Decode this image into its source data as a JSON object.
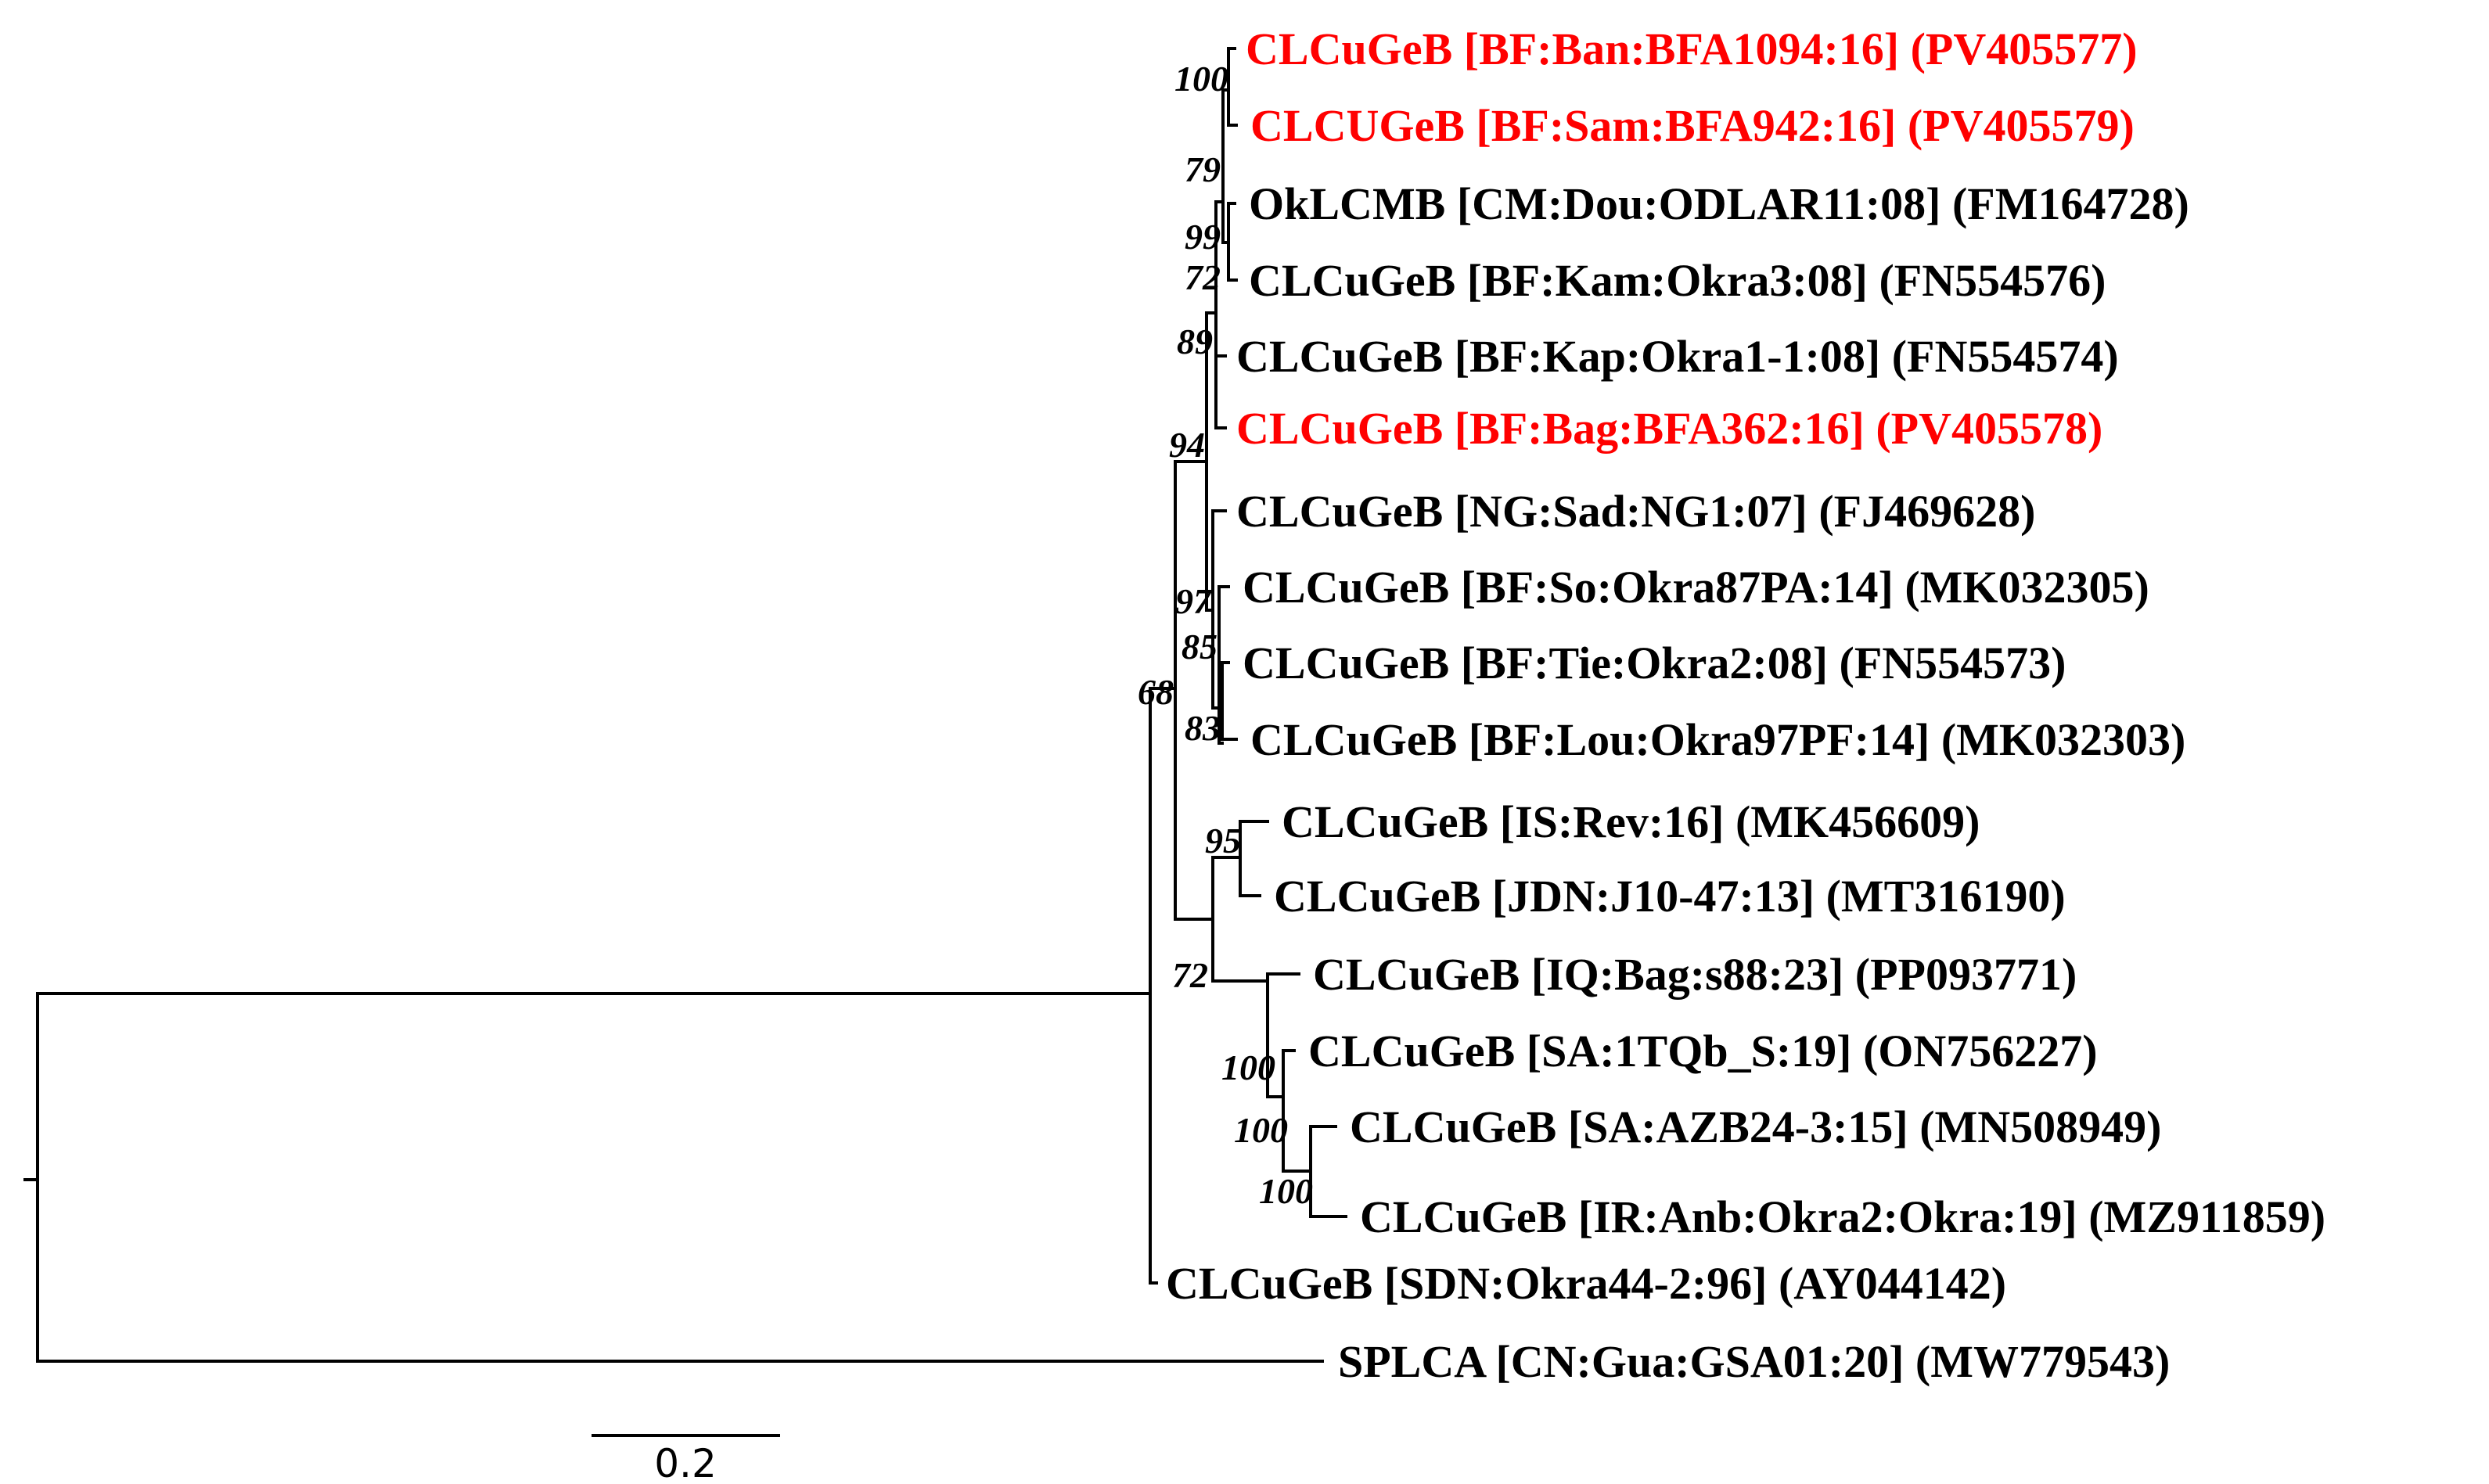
{
  "colors": {
    "highlight": "#ff0000",
    "default": "#000000"
  },
  "scale_bar": {
    "value": 0.2,
    "label": "0.2"
  },
  "leaves": [
    {
      "id": "BFA1094",
      "label": "CLCuGeB [BF:Ban:BFA1094:16] (PV405577)",
      "highlight": true
    },
    {
      "id": "BFA942",
      "label": "CLCUGeB [BF:Sam:BFA942:16] (PV405579)",
      "highlight": true
    },
    {
      "id": "ODLAR11",
      "label": "OkLCMB [CM:Dou:ODLAR11:08] (FM164728)",
      "highlight": false
    },
    {
      "id": "Okra3",
      "label": "CLCuGeB [BF:Kam:Okra3:08] (FN554576)",
      "highlight": false
    },
    {
      "id": "Okra1-1",
      "label": "CLCuGeB [BF:Kap:Okra1-1:08] (FN554574)",
      "highlight": false
    },
    {
      "id": "BFA362",
      "label": "CLCuGeB [BF:Bag:BFA362:16] (PV405578)",
      "highlight": true
    },
    {
      "id": "NG1",
      "label": "CLCuGeB [NG:Sad:NG1:07] (FJ469628)",
      "highlight": false
    },
    {
      "id": "Okra87PA",
      "label": "CLCuGeB [BF:So:Okra87PA:14] (MK032305)",
      "highlight": false
    },
    {
      "id": "Okra2Tie",
      "label": "CLCuGeB [BF:Tie:Okra2:08] (FN554573)",
      "highlight": false
    },
    {
      "id": "Okra97PF",
      "label": "CLCuGeB [BF:Lou:Okra97PF:14] (MK032303)",
      "highlight": false
    },
    {
      "id": "Rev",
      "label": "CLCuGeB [IS:Rev:16] (MK456609)",
      "highlight": false
    },
    {
      "id": "J10-47",
      "label": "CLCuGeB [JDN:J10-47:13] (MT316190)",
      "highlight": false
    },
    {
      "id": "s88",
      "label": "CLCuGeB [IQ:Bag:s88:23] (PP093771)",
      "highlight": false
    },
    {
      "id": "1TQb_S",
      "label": "CLCuGeB [SA:1TQb_S:19] (ON756227)",
      "highlight": false
    },
    {
      "id": "AZB24-3",
      "label": "CLCuGeB [SA:AZB24-3:15] (MN508949)",
      "highlight": false
    },
    {
      "id": "Okra2Anb",
      "label": "CLCuGeB [IR:Anb:Okra2:Okra:19] (MZ911859)",
      "highlight": false
    },
    {
      "id": "Okra44-2",
      "label": "CLCuGeB [SDN:Okra44-2:96] (AY044142)",
      "highlight": false
    },
    {
      "id": "GSA01",
      "label": "SPLCA [CN:Gua:GSA01:20] (MW779543)",
      "highlight": false
    }
  ],
  "support_values": [
    "100",
    "79",
    "99",
    "72",
    "89",
    "94",
    "97",
    "85",
    "83",
    "68",
    "95",
    "72",
    "100",
    "100",
    "100"
  ]
}
